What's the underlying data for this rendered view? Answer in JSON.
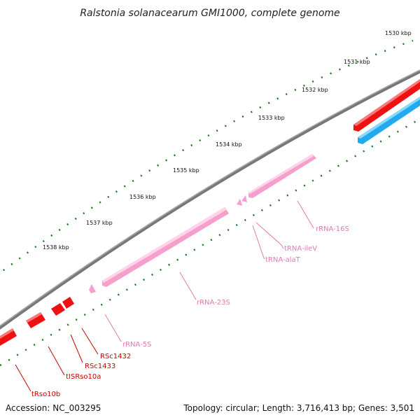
{
  "title": "Ralstonia solanacearum GMI1000, complete genome",
  "footer": {
    "accession": "Accession: NC_003295",
    "summary": "Topology: circular; Length: 3,716,413 bp; Genes: 3,501"
  },
  "ruler": {
    "ticks": [
      {
        "label": "1530 kbp",
        "value_kbp": 1530
      },
      {
        "label": "1531 kbp",
        "value_kbp": 1531
      },
      {
        "label": "1532 kbp",
        "value_kbp": 1532
      },
      {
        "label": "1533 kbp",
        "value_kbp": 1533
      },
      {
        "label": "1534 kbp",
        "value_kbp": 1534
      },
      {
        "label": "1535 kbp",
        "value_kbp": 1535
      },
      {
        "label": "1536 kbp",
        "value_kbp": 1536
      },
      {
        "label": "1537 kbp",
        "value_kbp": 1537
      },
      {
        "label": "1538 kbp",
        "value_kbp": 1538
      }
    ]
  },
  "features": [
    {
      "label": "rRNA-16S",
      "type": "rRNA"
    },
    {
      "label": "tRNA-ileV",
      "type": "tRNA"
    },
    {
      "label": "tRNA-alaT",
      "type": "tRNA"
    },
    {
      "label": "rRNA-23S",
      "type": "rRNA"
    },
    {
      "label": "rRNA-5S",
      "type": "rRNA"
    },
    {
      "label": "RSc1432",
      "type": "CDS"
    },
    {
      "label": "RSc1433",
      "type": "CDS"
    },
    {
      "label": "tISRso10a",
      "type": "CDS"
    },
    {
      "label": "tRso10b",
      "type": "CDS"
    }
  ],
  "colors": {
    "backbone": "#777777",
    "tick": "#1a7a1a",
    "rrna_fill": "#f5a0cc",
    "rrna_label": "#e07ab0",
    "cds_fill": "#ee1111",
    "cds_label": "#cc0000",
    "blue_fill": "#22aaee"
  }
}
